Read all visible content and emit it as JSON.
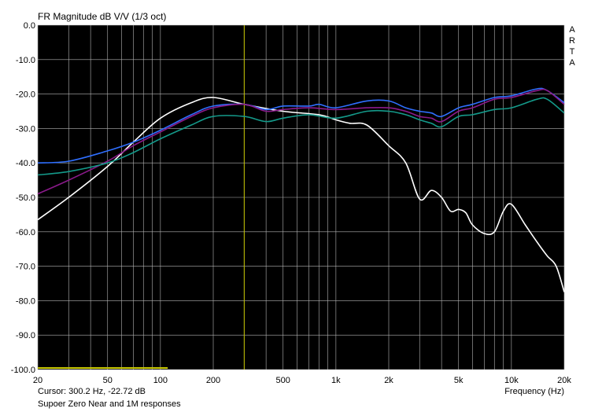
{
  "chart_data": {
    "type": "line",
    "title": "FR Magnitude dB V/V (1/3 oct)",
    "xlabel": "Frequency (Hz)",
    "ylabel": "",
    "xscale": "log",
    "xlim": [
      20,
      20000
    ],
    "ylim": [
      -100,
      0
    ],
    "grid": true,
    "x_ticks": [
      {
        "v": 20,
        "label": "20"
      },
      {
        "v": 50,
        "label": "50"
      },
      {
        "v": 100,
        "label": "100"
      },
      {
        "v": 200,
        "label": "200"
      },
      {
        "v": 500,
        "label": "500"
      },
      {
        "v": 1000,
        "label": "1k"
      },
      {
        "v": 2000,
        "label": "2k"
      },
      {
        "v": 5000,
        "label": "5k"
      },
      {
        "v": 10000,
        "label": "10k"
      },
      {
        "v": 20000,
        "label": "20k"
      }
    ],
    "y_ticks": [
      {
        "v": 0,
        "label": "0.0"
      },
      {
        "v": -10,
        "label": "-10.0"
      },
      {
        "v": -20,
        "label": "-20.0"
      },
      {
        "v": -30,
        "label": "-30.0"
      },
      {
        "v": -40,
        "label": "-40.0"
      },
      {
        "v": -50,
        "label": "-50.0"
      },
      {
        "v": -60,
        "label": "-60.0"
      },
      {
        "v": -70,
        "label": "-70.0"
      },
      {
        "v": -80,
        "label": "-80.0"
      },
      {
        "v": -90,
        "label": "-90.0"
      },
      {
        "v": -100,
        "label": "-100.0"
      }
    ],
    "cursor_x": 300.2,
    "series": [
      {
        "color": "#ffffff",
        "points": [
          [
            20,
            -56.5
          ],
          [
            30,
            -50
          ],
          [
            50,
            -41
          ],
          [
            70,
            -34
          ],
          [
            100,
            -27
          ],
          [
            150,
            -22.5
          ],
          [
            200,
            -21
          ],
          [
            300,
            -23
          ],
          [
            500,
            -25
          ],
          [
            800,
            -26
          ],
          [
            1000,
            -27.5
          ],
          [
            1200,
            -28.5
          ],
          [
            1500,
            -29
          ],
          [
            2000,
            -35
          ],
          [
            2500,
            -40
          ],
          [
            3000,
            -50.5
          ],
          [
            3500,
            -48
          ],
          [
            4000,
            -50
          ],
          [
            4500,
            -54
          ],
          [
            5000,
            -53.5
          ],
          [
            5500,
            -54.5
          ],
          [
            6000,
            -58
          ],
          [
            7000,
            -60.5
          ],
          [
            8000,
            -60
          ],
          [
            9000,
            -54
          ],
          [
            10000,
            -52
          ],
          [
            12000,
            -58
          ],
          [
            14000,
            -63
          ],
          [
            16000,
            -67
          ],
          [
            18000,
            -70
          ],
          [
            20000,
            -77.5
          ]
        ]
      },
      {
        "color": "#2f6fff",
        "points": [
          [
            20,
            -40
          ],
          [
            30,
            -39.5
          ],
          [
            50,
            -36.5
          ],
          [
            70,
            -34
          ],
          [
            100,
            -30.5
          ],
          [
            150,
            -26
          ],
          [
            200,
            -23.5
          ],
          [
            300,
            -23
          ],
          [
            400,
            -24.5
          ],
          [
            500,
            -23.5
          ],
          [
            700,
            -23.5
          ],
          [
            800,
            -23
          ],
          [
            1000,
            -24
          ],
          [
            1500,
            -22
          ],
          [
            2000,
            -22
          ],
          [
            2500,
            -24
          ],
          [
            3000,
            -25
          ],
          [
            3500,
            -25.5
          ],
          [
            4000,
            -26.5
          ],
          [
            5000,
            -24
          ],
          [
            6000,
            -23
          ],
          [
            8000,
            -21
          ],
          [
            10000,
            -20.5
          ],
          [
            14000,
            -18.5
          ],
          [
            16000,
            -19
          ],
          [
            20000,
            -22.5
          ]
        ]
      },
      {
        "color": "#8a1a8a",
        "points": [
          [
            20,
            -49
          ],
          [
            30,
            -45
          ],
          [
            50,
            -39.5
          ],
          [
            70,
            -35
          ],
          [
            100,
            -31
          ],
          [
            150,
            -26.5
          ],
          [
            200,
            -24
          ],
          [
            300,
            -23
          ],
          [
            400,
            -25
          ],
          [
            500,
            -24.5
          ],
          [
            700,
            -24
          ],
          [
            1000,
            -24.5
          ],
          [
            1500,
            -24
          ],
          [
            2000,
            -24
          ],
          [
            2500,
            -25
          ],
          [
            3000,
            -26.5
          ],
          [
            3500,
            -27
          ],
          [
            4000,
            -28
          ],
          [
            5000,
            -25
          ],
          [
            6000,
            -24
          ],
          [
            8000,
            -21.5
          ],
          [
            10000,
            -21
          ],
          [
            14000,
            -19
          ],
          [
            16000,
            -19
          ],
          [
            20000,
            -23
          ]
        ]
      },
      {
        "color": "#149a8a",
        "points": [
          [
            20,
            -43.5
          ],
          [
            30,
            -42.5
          ],
          [
            50,
            -40
          ],
          [
            70,
            -37
          ],
          [
            100,
            -33
          ],
          [
            150,
            -29
          ],
          [
            200,
            -26.5
          ],
          [
            300,
            -26.5
          ],
          [
            400,
            -28
          ],
          [
            500,
            -27
          ],
          [
            700,
            -26
          ],
          [
            1000,
            -27
          ],
          [
            1500,
            -25
          ],
          [
            2000,
            -25
          ],
          [
            2500,
            -26
          ],
          [
            3000,
            -27.5
          ],
          [
            3500,
            -28.5
          ],
          [
            4000,
            -29.5
          ],
          [
            5000,
            -26.5
          ],
          [
            6000,
            -26
          ],
          [
            8000,
            -24.5
          ],
          [
            10000,
            -24
          ],
          [
            14000,
            -21.5
          ],
          [
            16000,
            -21.5
          ],
          [
            20000,
            -25.5
          ]
        ]
      }
    ]
  },
  "footer": {
    "cursor_text": "Cursor: 300.2 Hz, -22.72 dB",
    "caption": "Supoer Zero Near and 1M responses"
  },
  "brand": {
    "letters": [
      "A",
      "R",
      "T",
      "A"
    ]
  },
  "colors": {
    "background": "#000000",
    "grid": "#b4b4b4",
    "cursor": "#c8c800"
  }
}
